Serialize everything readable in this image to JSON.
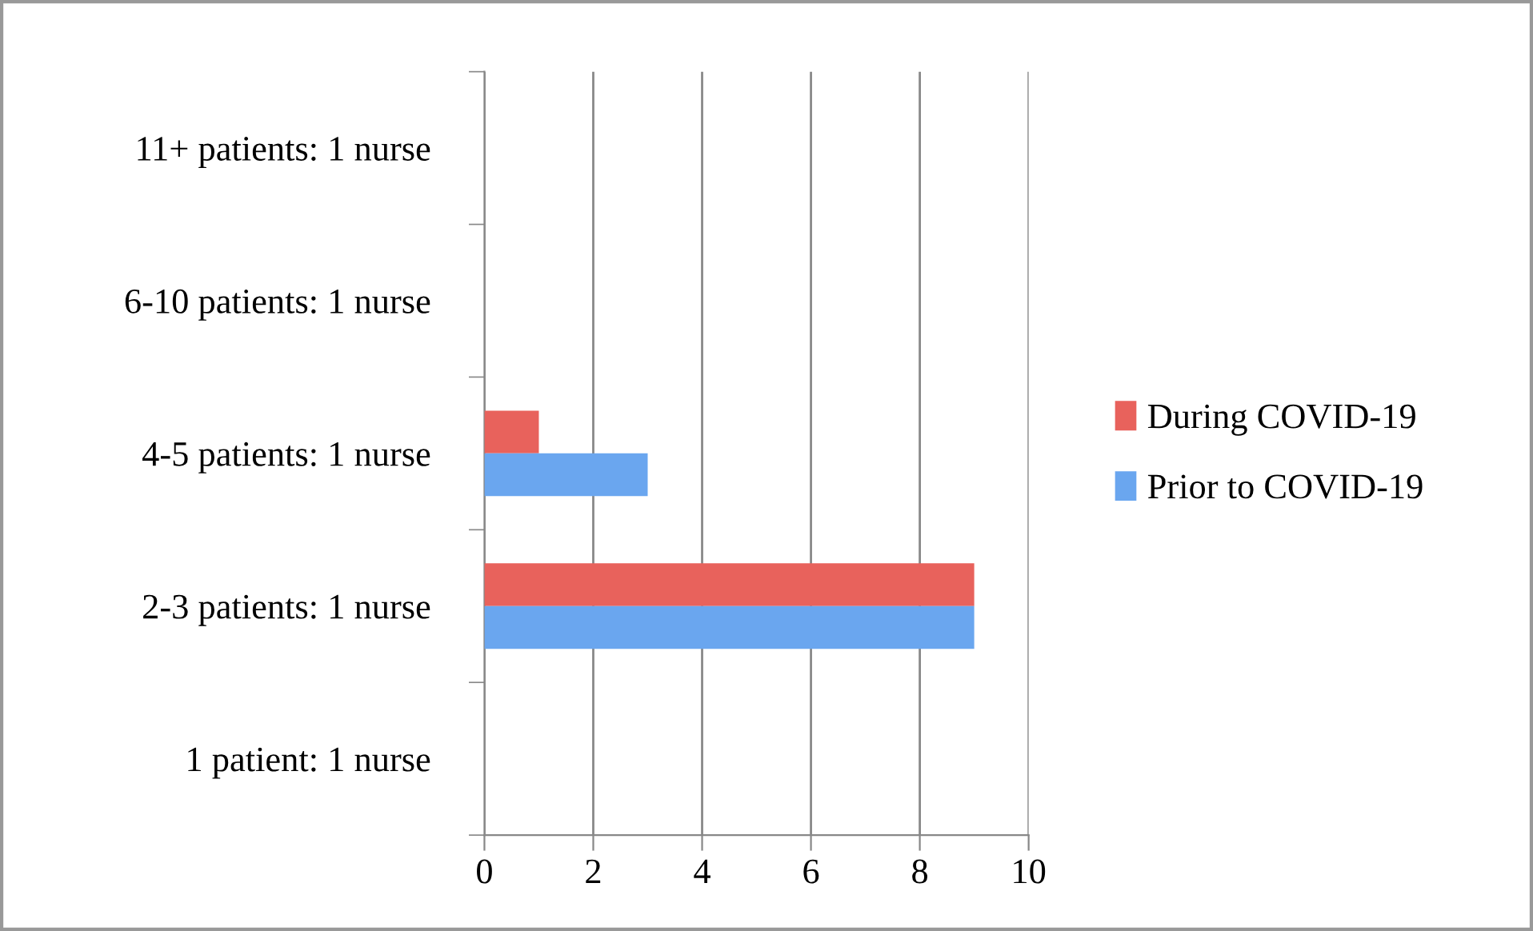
{
  "chart_data": {
    "type": "bar",
    "orientation": "horizontal",
    "categories": [
      "11+ patients: 1 nurse",
      "6-10 patients: 1 nurse",
      "4-5 patients: 1 nurse",
      "2-3 patients: 1 nurse",
      "1 patient: 1 nurse"
    ],
    "series": [
      {
        "name": "During COVID-19",
        "color": "#e8625c",
        "values": [
          0,
          0,
          1,
          9,
          0
        ]
      },
      {
        "name": "Prior to COVID-19",
        "color": "#6aa6ef",
        "values": [
          0,
          0,
          3,
          9,
          0
        ]
      }
    ],
    "xlim": [
      0,
      10
    ],
    "xticks": [
      0,
      2,
      4,
      6,
      8,
      10
    ],
    "grid": "x",
    "legend": "right"
  }
}
